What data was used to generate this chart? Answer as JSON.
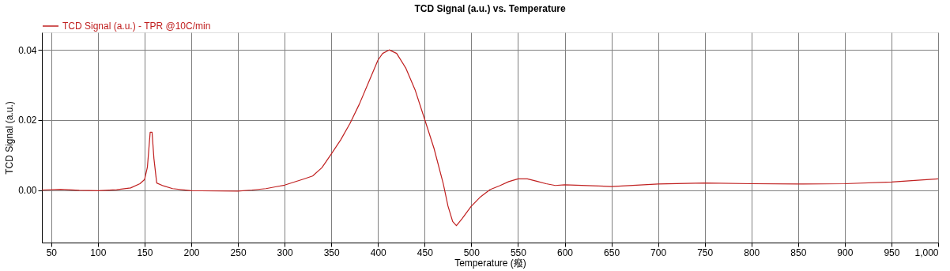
{
  "chart_data": {
    "type": "line",
    "title": "TCD Signal (a.u.) vs. Temperature",
    "xlabel": "Temperature (癈)",
    "ylabel": "TCD Signal (a.u.)",
    "xlim": [
      40,
      1000
    ],
    "ylim": [
      -0.015,
      0.045
    ],
    "xticks": [
      50,
      100,
      150,
      200,
      250,
      300,
      350,
      400,
      450,
      500,
      550,
      600,
      650,
      700,
      750,
      800,
      850,
      900,
      950,
      {
        "value": 1000,
        "label": "1,000"
      }
    ],
    "yticks": [
      {
        "value": 0,
        "label": "0.00"
      },
      0.02,
      0.04
    ],
    "grid": true,
    "legend": "top left",
    "marker": "none",
    "line_style": "solid",
    "series": [
      {
        "name": "TCD Signal (a.u.) - TPR @10C/min",
        "color": "#c02020",
        "x": [
          40,
          60,
          80,
          100,
          120,
          135,
          145,
          150,
          153,
          156,
          158,
          160,
          163,
          170,
          180,
          200,
          250,
          265,
          280,
          290,
          300,
          320,
          330,
          340,
          350,
          360,
          370,
          380,
          390,
          400,
          405,
          412,
          420,
          430,
          440,
          450,
          460,
          470,
          475,
          480,
          484,
          490,
          500,
          510,
          520,
          530,
          540,
          550,
          560,
          570,
          580,
          590,
          600,
          650,
          700,
          750,
          800,
          850,
          900,
          950,
          1000
        ],
        "values": [
          0,
          0.0002,
          -0.0001,
          -0.0002,
          0.0001,
          0.0006,
          0.0018,
          0.003,
          0.0065,
          0.0165,
          0.0165,
          0.009,
          0.002,
          0.0012,
          0.0004,
          -0.0002,
          -0.0003,
          0,
          0.0004,
          0.0009,
          0.0014,
          0.0031,
          0.004,
          0.0064,
          0.0103,
          0.0143,
          0.019,
          0.0245,
          0.0308,
          0.0371,
          0.039,
          0.04,
          0.039,
          0.0347,
          0.0284,
          0.0202,
          0.0119,
          0.0017,
          -0.0046,
          -0.009,
          -0.0102,
          -0.0082,
          -0.0046,
          -0.0019,
          0.0001,
          0.0012,
          0.0024,
          0.0032,
          0.0032,
          0.0025,
          0.0018,
          0.0013,
          0.0015,
          0.001,
          0.0017,
          0.002,
          0.0018,
          0.0017,
          0.0018,
          0.0023,
          0.0032
        ]
      }
    ]
  }
}
